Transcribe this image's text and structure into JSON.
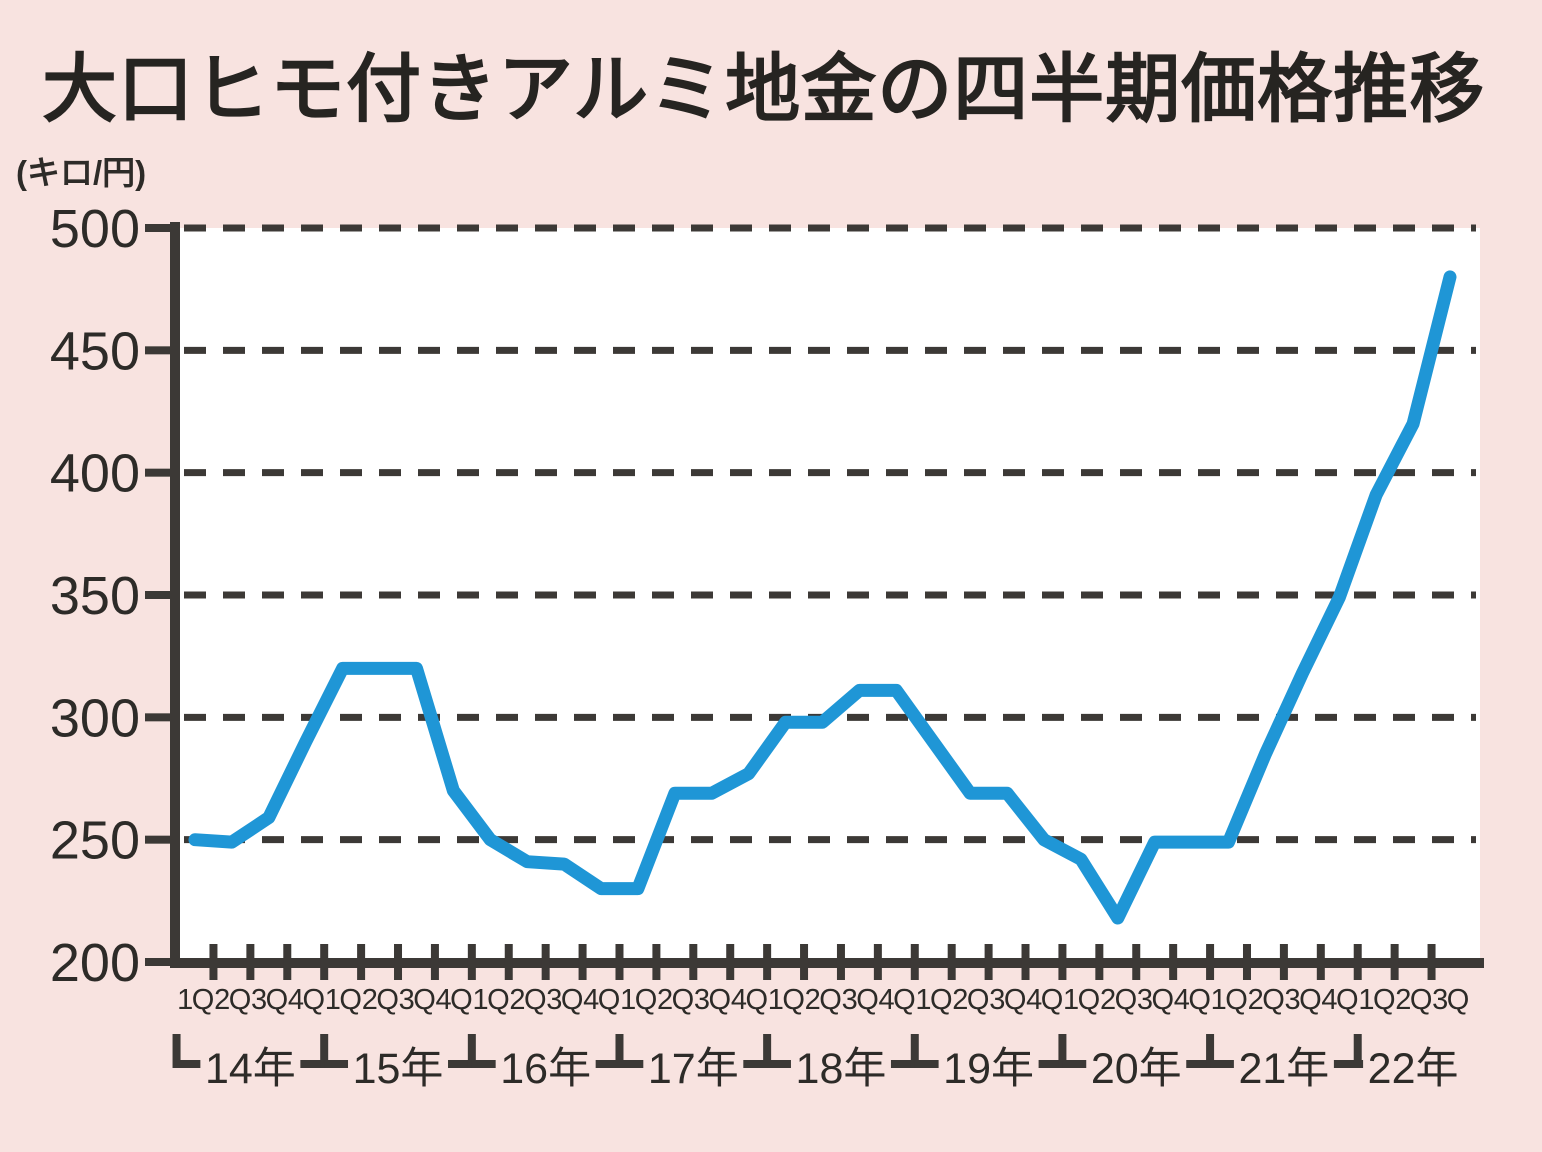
{
  "chart_data": {
    "type": "line",
    "title": "大口ヒモ付きアルミ地金の四半期価格推移",
    "unit_label": "(キロ/円)",
    "ylim": [
      200,
      500
    ],
    "yticks": [
      200,
      250,
      300,
      350,
      400,
      450,
      500
    ],
    "grid": "dashed-horizontal",
    "legend": "none",
    "x_quarter_labels": [
      "1Q",
      "2Q",
      "3Q",
      "4Q",
      "1Q",
      "2Q",
      "3Q",
      "4Q",
      "1Q",
      "2Q",
      "3Q",
      "4Q",
      "1Q",
      "2Q",
      "3Q",
      "4Q",
      "1Q",
      "2Q",
      "3Q",
      "4Q",
      "1Q",
      "2Q",
      "3Q",
      "4Q",
      "1Q",
      "2Q",
      "3Q",
      "4Q",
      "1Q",
      "2Q",
      "3Q",
      "4Q",
      "1Q",
      "2Q",
      "3Q"
    ],
    "year_labels": [
      "14年",
      "15年",
      "16年",
      "17年",
      "18年",
      "19年",
      "20年",
      "21年",
      "22年"
    ],
    "quarters_per_year": [
      4,
      4,
      4,
      4,
      4,
      4,
      4,
      4,
      3
    ],
    "values": [
      250,
      249,
      259,
      290,
      320,
      320,
      320,
      270,
      250,
      241,
      240,
      230,
      230,
      269,
      269,
      277,
      298,
      298,
      311,
      311,
      290,
      269,
      269,
      250,
      242,
      218,
      249,
      249,
      249,
      285,
      318,
      349,
      391,
      420,
      480
    ],
    "colors": {
      "line": "#1f96d6",
      "background": "#f8e3e0",
      "plot_background": "#ffffff",
      "axis": "#3c3936",
      "gridline": "#3c3936",
      "text": "#2d2b28",
      "title_text": "#262421"
    }
  }
}
